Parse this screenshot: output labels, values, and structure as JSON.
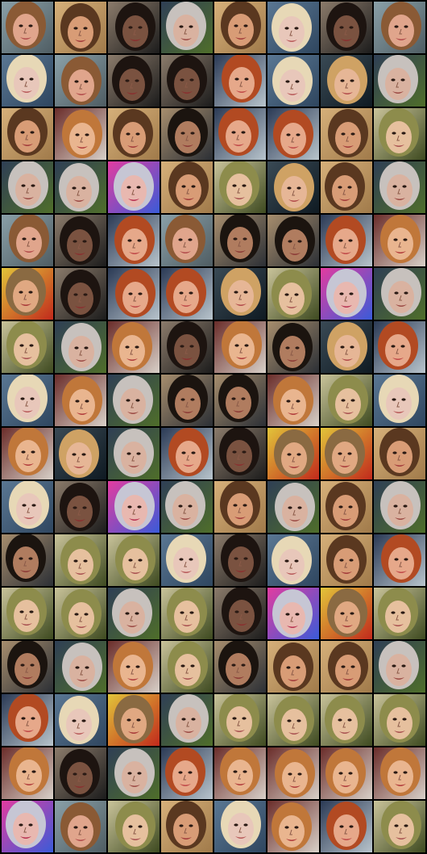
{
  "grid": {
    "columns": 8,
    "rows": 16,
    "background_color": "#000000"
  },
  "palette": {
    "A": {
      "bg": "#4f5d63",
      "bg2": "#8aa0a8",
      "hair": "#8a5a35",
      "skin": "#e0a58c",
      "mouth": "#b24b4b"
    },
    "B": {
      "bg": "#a07a4a",
      "bg2": "#d6b07a",
      "hair": "#5a3820",
      "skin": "#d89c76",
      "mouth": "#a23a3a"
    },
    "C": {
      "bg": "#1c1c1c",
      "bg2": "#8b7b6b",
      "hair": "#1d1410",
      "skin": "#7a5240",
      "mouth": "#8a3030"
    },
    "D": {
      "bg": "#4f6e2a",
      "bg2": "#2f3f55",
      "hair": "#c7c1bd",
      "skin": "#d9b2a0",
      "mouth": "#9c4a44"
    },
    "E": {
      "bg": "#2f465f",
      "bg2": "#5a7793",
      "hair": "#e7d8b6",
      "skin": "#e8c7ba",
      "mouth": "#b85a5a"
    },
    "F": {
      "bg": "#0f1a22",
      "bg2": "#3a4a55",
      "hair": "#cfa264",
      "skin": "#e6b696",
      "mouth": "#b24b4b"
    },
    "G": {
      "bg": "#3e4a20",
      "bg2": "#c9c39a",
      "hair": "#8d8c4c",
      "skin": "#e6c09e",
      "mouth": "#a85050"
    },
    "H": {
      "bg": "#b8c4cc",
      "bg2": "#2b3a55",
      "hair": "#b24a22",
      "skin": "#e6a88a",
      "mouth": "#c04848"
    },
    "I": {
      "bg": "#d8d0c8",
      "bg2": "#6a2d2a",
      "hair": "#c0773a",
      "skin": "#e9b58f",
      "mouth": "#b03a3a"
    },
    "J": {
      "bg": "#2b2f35",
      "bg2": "#a78e6e",
      "hair": "#1b140f",
      "skin": "#b07c5f",
      "mouth": "#8c3a36"
    },
    "K": {
      "bg": "#3a5bd8",
      "bg2": "#e23ca0",
      "hair": "#c6c6d4",
      "skin": "#e8b8b0",
      "mouth": "#b83050"
    },
    "L": {
      "bg": "#c12a1c",
      "bg2": "#e2c43a",
      "hair": "#8a6a42",
      "skin": "#e0a882",
      "mouth": "#a83838"
    }
  },
  "tiles": [
    "A",
    "B",
    "C",
    "D",
    "B",
    "E",
    "C",
    "A",
    "E",
    "A",
    "C",
    "C",
    "H",
    "E",
    "F",
    "D",
    "B",
    "I",
    "B",
    "J",
    "H",
    "H",
    "B",
    "G",
    "D",
    "D",
    "K",
    "B",
    "G",
    "F",
    "B",
    "D",
    "A",
    "C",
    "H",
    "A",
    "J",
    "J",
    "H",
    "I",
    "L",
    "C",
    "H",
    "H",
    "F",
    "G",
    "K",
    "D",
    "G",
    "D",
    "I",
    "C",
    "I",
    "J",
    "F",
    "H",
    "E",
    "I",
    "D",
    "J",
    "J",
    "I",
    "G",
    "E",
    "I",
    "F",
    "D",
    "H",
    "C",
    "L",
    "L",
    "B",
    "E",
    "C",
    "K",
    "D",
    "B",
    "D",
    "B",
    "D",
    "J",
    "G",
    "G",
    "E",
    "C",
    "E",
    "B",
    "H",
    "G",
    "G",
    "D",
    "G",
    "C",
    "K",
    "L",
    "G",
    "J",
    "D",
    "I",
    "G",
    "J",
    "B",
    "B",
    "D",
    "H",
    "E",
    "L",
    "D",
    "G",
    "G",
    "G",
    "G",
    "I",
    "C",
    "D",
    "H",
    "I",
    "I",
    "I",
    "I",
    "K",
    "A",
    "G",
    "B",
    "E",
    "I",
    "H",
    "G"
  ]
}
